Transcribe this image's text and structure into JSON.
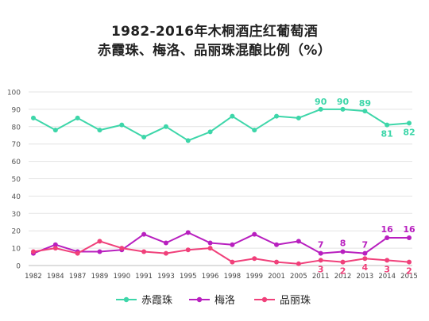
{
  "title_line1": "1982-2016年木桐酒庄红葡萄酒",
  "title_line2": "赤霞珠、梅洛、品丽珠混酿比例（%）",
  "chart_data": {
    "type": "line",
    "title": "1982-2016年木桐酒庄红葡萄酒赤霞珠、梅洛、品丽珠混酿比例（%）",
    "categories": [
      "1982",
      "1984",
      "1987",
      "1989",
      "1990",
      "1991",
      "1993",
      "1995",
      "1996",
      "1998",
      "1999",
      "2001",
      "2005",
      "2011",
      "2012",
      "2013",
      "2014",
      "2015"
    ],
    "ylim": [
      0,
      100
    ],
    "yticks": [
      "0",
      "10",
      "20",
      "30",
      "40",
      "50",
      "60",
      "70",
      "80",
      "90",
      "100"
    ],
    "grid": true,
    "legend_position": "bottom",
    "series": [
      {
        "name": "赤霞珠",
        "color": "#3dd6a9",
        "values": [
          85,
          78,
          85,
          78,
          81,
          74,
          80,
          72,
          77,
          86,
          78,
          86,
          85,
          90,
          90,
          89,
          81,
          82
        ],
        "labels": [
          null,
          null,
          null,
          null,
          null,
          null,
          null,
          null,
          null,
          null,
          null,
          null,
          null,
          "90",
          "90",
          "89",
          "81",
          "82"
        ]
      },
      {
        "name": "梅洛",
        "color": "#b81fbf",
        "values": [
          7,
          12,
          8,
          8,
          9,
          18,
          13,
          19,
          13,
          12,
          18,
          12,
          14,
          7,
          8,
          7,
          16,
          16
        ],
        "labels": [
          null,
          null,
          null,
          null,
          null,
          null,
          null,
          null,
          null,
          null,
          null,
          null,
          null,
          "7",
          "8",
          "7",
          "16",
          "16"
        ]
      },
      {
        "name": "品丽珠",
        "color": "#f0407a",
        "values": [
          8,
          10,
          7,
          14,
          10,
          8,
          7,
          9,
          10,
          2,
          4,
          2,
          1,
          3,
          2,
          4,
          3,
          2
        ],
        "labels": [
          null,
          null,
          null,
          null,
          null,
          null,
          null,
          null,
          null,
          null,
          null,
          null,
          null,
          "3",
          "2",
          "4",
          "3",
          "2"
        ]
      }
    ]
  }
}
